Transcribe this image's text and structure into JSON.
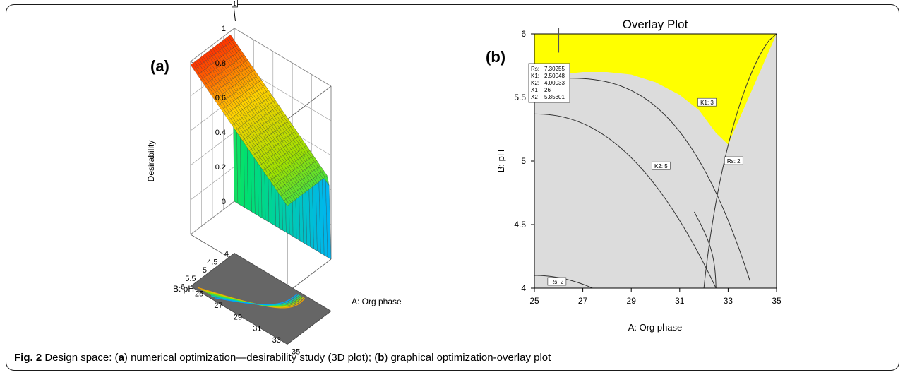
{
  "chart_data": [
    {
      "type": "surface3d",
      "panel_label": "(a)",
      "title": "",
      "zlabel": "Desirability",
      "xlabel": "A: Org phase",
      "ylabel": "B: pH",
      "x_ticks": [
        "25",
        "27",
        "29",
        "31",
        "33",
        "35"
      ],
      "y_ticks": [
        "4",
        "4.5",
        "5",
        "5.5",
        "6"
      ],
      "z_ticks": [
        "0",
        "0.2",
        "0.4",
        "0.6",
        "0.8",
        "1"
      ],
      "xlim": [
        25,
        35
      ],
      "ylim": [
        4,
        6
      ],
      "zlim": [
        0,
        1
      ],
      "max_flag": "1",
      "peak": {
        "x": 25,
        "y": 6,
        "z": 0.98
      },
      "colormap": [
        "#0000ff",
        "#00b0ff",
        "#00e070",
        "#a0e000",
        "#ffd000",
        "#ff2000"
      ]
    },
    {
      "type": "overlay_contour",
      "panel_label": "(b)",
      "title": "Overlay Plot",
      "xlabel": "A: Org phase",
      "ylabel": "B: pH",
      "xlim": [
        25,
        35
      ],
      "ylim": [
        4,
        6
      ],
      "x_ticks": [
        "25",
        "27",
        "29",
        "31",
        "33",
        "35"
      ],
      "y_ticks": [
        "4",
        "4.5",
        "5",
        "5.5",
        "6"
      ],
      "feasible_color": "#ffff00",
      "infeasible_color": "#dcdcdc",
      "contour_labels": [
        {
          "text": "K1: 3",
          "x": 32.1,
          "y": 5.46
        },
        {
          "text": "Rs: 2",
          "x": 33.2,
          "y": 5.0
        },
        {
          "text": "K2: 5",
          "x": 30.2,
          "y": 4.96
        },
        {
          "text": "Rs: 2",
          "x": 25.9,
          "y": 4.05
        }
      ],
      "flag": {
        "x": 26,
        "y": 5.85301,
        "rows": [
          {
            "key": "Rs:",
            "value": "7.30255"
          },
          {
            "key": "K1:",
            "value": "2.50048"
          },
          {
            "key": "K2:",
            "value": "4.00033"
          },
          {
            "key": "X1",
            "value": "26"
          },
          {
            "key": "X2",
            "value": "5.85301"
          }
        ]
      }
    }
  ],
  "caption": {
    "fig_label": "Fig. 2",
    "parts": [
      {
        "t": " Design space: (",
        "b": false
      },
      {
        "t": "a",
        "b": true
      },
      {
        "t": ") numerical optimization—desirability study (3D plot); (",
        "b": false
      },
      {
        "t": "b",
        "b": true
      },
      {
        "t": ") graphical optimization-overlay plot",
        "b": false
      }
    ]
  }
}
